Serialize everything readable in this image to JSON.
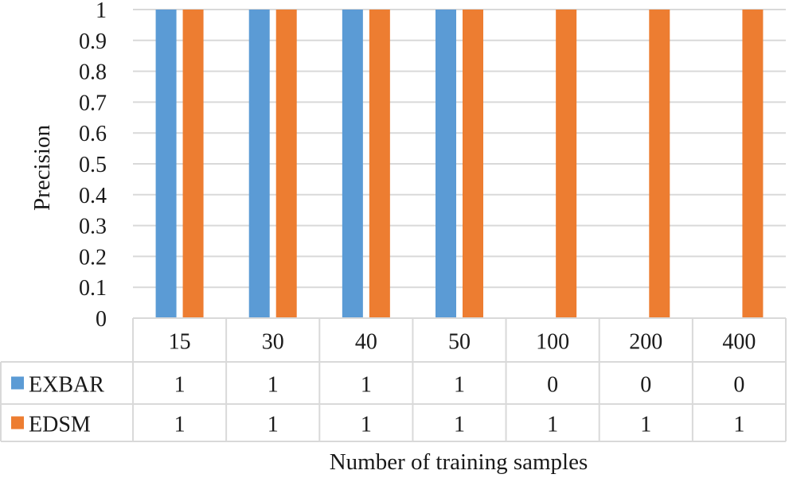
{
  "chart_data": {
    "type": "bar",
    "categories": [
      "15",
      "30",
      "40",
      "50",
      "100",
      "200",
      "400"
    ],
    "series": [
      {
        "name": "EXBAR",
        "values": [
          1,
          1,
          1,
          1,
          0,
          0,
          0
        ],
        "color": "#5b9bd5"
      },
      {
        "name": "EDSM",
        "values": [
          1,
          1,
          1,
          1,
          1,
          1,
          1
        ],
        "color": "#ed7d31"
      }
    ],
    "xlabel": "Number of training samples",
    "ylabel": "Precision",
    "ylim": [
      0,
      1
    ],
    "yticks": [
      "0",
      "0.1",
      "0.2",
      "0.3",
      "0.4",
      "0.5",
      "0.6",
      "0.7",
      "0.8",
      "0.9",
      "1"
    ],
    "grid": true,
    "legend": "data-table"
  }
}
